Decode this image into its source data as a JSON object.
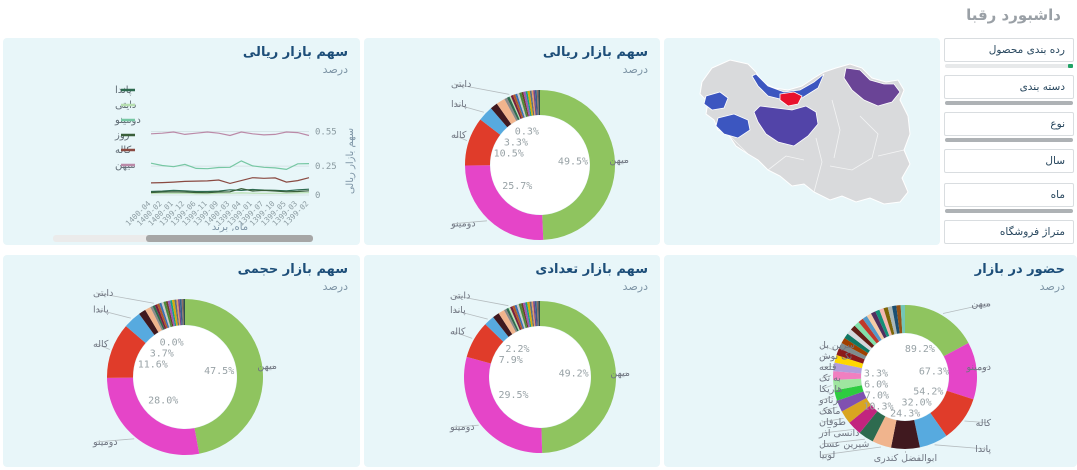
{
  "page": {
    "title": "داشبورد رقبا"
  },
  "filters": {
    "tick_color": "#21a366",
    "items": [
      {
        "label": "رده بندی محصول",
        "scrollbar": true,
        "tick": true
      },
      {
        "label": "دسته بندی",
        "scrollbar": true,
        "tick": false
      },
      {
        "label": "نوع",
        "scrollbar": true,
        "tick": false
      },
      {
        "label": "سال",
        "scrollbar": false,
        "tick": false
      },
      {
        "label": "ماه",
        "scrollbar": true,
        "tick": false
      },
      {
        "label": "متراژ فروشگاه",
        "scrollbar": false,
        "tick": false
      }
    ]
  },
  "map": {
    "regions": [
      {
        "id": "iran-base",
        "color": "#d9dadc"
      },
      {
        "id": "mazandaran",
        "color": "#3c56c0"
      },
      {
        "id": "kurdistan",
        "color": "#3c56c0"
      },
      {
        "id": "hamadan-cluster",
        "color": "#3c56c0"
      },
      {
        "id": "central",
        "color": "#5244a8"
      },
      {
        "id": "khorasan-razavi",
        "color": "#6a4496"
      },
      {
        "id": "tehran",
        "color": "#e8112d"
      }
    ]
  },
  "chart_data": [
    {
      "type": "line",
      "title": "سهم بازار ریالی",
      "subtitle": "درصد",
      "xlabel": "ماه, برند",
      "ylabel": "سهم بازار ریالی",
      "x": [
        "1400-04",
        "1400-02",
        "1400-01",
        "1399-12",
        "1399-06",
        "1399-11",
        "1399-09",
        "1400-03",
        "1399-04",
        "1399-01",
        "1399-07",
        "1399-10",
        "1399-05",
        "1399-03",
        "1399-02"
      ],
      "yticks": [
        "0.55",
        "0.25",
        "0"
      ],
      "ytick_values": [
        0.55,
        0.25,
        0
      ],
      "ymax": 0.58,
      "series": [
        {
          "name": "پاندا",
          "color": "#2d6a4f",
          "values": [
            0.03,
            0.034,
            0.04,
            0.036,
            0.03,
            0.03,
            0.034,
            0.045,
            0.04,
            0.048,
            0.042,
            0.04,
            0.036,
            0.044,
            0.05
          ]
        },
        {
          "name": "دایتی",
          "color": "#b7dfb0",
          "values": [
            0.015,
            0.016,
            0.015,
            0.016,
            0.012,
            0.012,
            0.015,
            0.016,
            0.018,
            0.016,
            0.015,
            0.016,
            0.015,
            0.018,
            0.02
          ]
        },
        {
          "name": "دومینو",
          "color": "#76c7a3",
          "values": [
            0.275,
            0.255,
            0.245,
            0.265,
            0.23,
            0.228,
            0.238,
            0.24,
            0.295,
            0.252,
            0.24,
            0.235,
            0.222,
            0.27,
            0.272
          ]
        },
        {
          "name": "روز",
          "color": "#3a5f3a",
          "values": [
            0.022,
            0.026,
            0.028,
            0.026,
            0.022,
            0.02,
            0.026,
            0.028,
            0.055,
            0.035,
            0.04,
            0.035,
            0.028,
            0.03,
            0.036
          ]
        },
        {
          "name": "کاله",
          "color": "#8a4a42",
          "values": [
            0.105,
            0.107,
            0.112,
            0.118,
            0.12,
            0.122,
            0.13,
            0.1,
            0.125,
            0.15,
            0.145,
            0.148,
            0.112,
            0.125,
            0.15
          ]
        },
        {
          "name": "میهن",
          "color": "#bb8aa8",
          "values": [
            0.53,
            0.535,
            0.545,
            0.525,
            0.535,
            0.545,
            0.535,
            0.515,
            0.545,
            0.53,
            0.52,
            0.525,
            0.545,
            0.54,
            0.515
          ]
        }
      ]
    },
    {
      "type": "pie",
      "title": "سهم بازار ریالی",
      "subtitle": "درصد",
      "slices": [
        {
          "name": "میهن",
          "value": 49.5,
          "color": "#8fc45f",
          "pct": "49.5%"
        },
        {
          "name": "دومینو",
          "value": 25.7,
          "color": "#e545c8",
          "pct": "25.7%"
        },
        {
          "name": "کاله",
          "value": 10.5,
          "color": "#e03c2a",
          "pct": "10.5%"
        },
        {
          "name": "پاندا",
          "value": 3.3,
          "color": "#57aadf",
          "pct": "3.3%"
        },
        {
          "value": 1.6,
          "color": "#40191f"
        },
        {
          "value": 1.9,
          "color": "#f0b48d"
        },
        {
          "value": 0.6,
          "color": "#8a8a8a"
        },
        {
          "value": 0.6,
          "color": "#2e6b4f"
        },
        {
          "name": "دایتی",
          "value": 0.3,
          "color": "#b7dfb0",
          "pct": "0.3%"
        },
        {
          "value": 0.5,
          "color": "#7a1f3d"
        },
        {
          "value": 0.5,
          "color": "#b05c2a"
        },
        {
          "value": 0.45,
          "color": "#3b6fb3"
        },
        {
          "value": 0.45,
          "color": "#c9c9c9"
        },
        {
          "value": 0.5,
          "color": "#4b8b3b"
        },
        {
          "value": 0.4,
          "color": "#6b4226"
        },
        {
          "value": 0.5,
          "color": "#9b59b6"
        },
        {
          "value": 0.4,
          "color": "#16a085"
        },
        {
          "value": 0.5,
          "color": "#d4ac0d"
        },
        {
          "value": 0.4,
          "color": "#5d6d7e"
        },
        {
          "value": 0.35,
          "color": "#e59866"
        },
        {
          "value": 0.35,
          "color": "#76448a"
        },
        {
          "value": 0.4,
          "color": "#356089"
        },
        {
          "value": 0.35,
          "color": "#8d6e63"
        },
        {
          "value": 0.35,
          "color": "#2f4f4f"
        }
      ]
    },
    {
      "type": "pie",
      "title": "سهم بازار حجمی",
      "subtitle": "درصد",
      "slices": [
        {
          "name": "میهن",
          "value": 47.5,
          "color": "#8fc45f",
          "pct": "47.5%"
        },
        {
          "name": "دومینو",
          "value": 28.0,
          "color": "#e545c8",
          "pct": "28.0%"
        },
        {
          "name": "کاله",
          "value": 11.6,
          "color": "#e03c2a",
          "pct": "11.6%"
        },
        {
          "name": "پاندا",
          "value": 3.7,
          "color": "#57aadf",
          "pct": "3.7%"
        },
        {
          "value": 1.5,
          "color": "#40191f"
        },
        {
          "value": 1.2,
          "color": "#f0b48d"
        },
        {
          "value": 0.5,
          "color": "#8a8a8a"
        },
        {
          "value": 0.5,
          "color": "#2e6b4f"
        },
        {
          "name": "دایتی",
          "value": 0.0,
          "color": "#b7dfb0",
          "pct": "0.0%"
        },
        {
          "value": 0.5,
          "color": "#7a1f3d"
        },
        {
          "value": 0.5,
          "color": "#b05c2a"
        },
        {
          "value": 0.45,
          "color": "#3b6fb3"
        },
        {
          "value": 0.45,
          "color": "#c9c9c9"
        },
        {
          "value": 0.5,
          "color": "#4b8b3b"
        },
        {
          "value": 0.4,
          "color": "#6b4226"
        },
        {
          "value": 0.5,
          "color": "#9b59b6"
        },
        {
          "value": 0.4,
          "color": "#16a085"
        },
        {
          "value": 0.5,
          "color": "#d4ac0d"
        },
        {
          "value": 0.4,
          "color": "#5d6d7e"
        },
        {
          "value": 0.35,
          "color": "#e59866"
        },
        {
          "value": 0.35,
          "color": "#76448a"
        },
        {
          "value": 0.4,
          "color": "#356089"
        },
        {
          "value": 0.35,
          "color": "#8d6e63"
        },
        {
          "value": 0.35,
          "color": "#2f4f4f"
        }
      ]
    },
    {
      "type": "pie",
      "title": "سهم بازار تعدادی",
      "subtitle": "درصد",
      "slices": [
        {
          "name": "میهن",
          "value": 49.2,
          "color": "#8fc45f",
          "pct": "49.2%"
        },
        {
          "name": "دومینو",
          "value": 29.5,
          "color": "#e545c8",
          "pct": "29.5%"
        },
        {
          "name": "کاله",
          "value": 7.9,
          "color": "#e03c2a",
          "pct": "7.9%"
        },
        {
          "name": "پاندا",
          "value": 2.2,
          "color": "#57aadf",
          "pct": "2.2%"
        },
        {
          "value": 1.4,
          "color": "#40191f"
        },
        {
          "value": 1.3,
          "color": "#f0b48d"
        },
        {
          "value": 0.5,
          "color": "#8a8a8a"
        },
        {
          "value": 0.5,
          "color": "#2e6b4f"
        },
        {
          "name": "دایتی",
          "value": 0.4,
          "color": "#b7dfb0"
        },
        {
          "value": 0.5,
          "color": "#7a1f3d"
        },
        {
          "value": 0.5,
          "color": "#b05c2a"
        },
        {
          "value": 0.45,
          "color": "#3b6fb3"
        },
        {
          "value": 0.45,
          "color": "#c9c9c9"
        },
        {
          "value": 0.5,
          "color": "#4b8b3b"
        },
        {
          "value": 0.4,
          "color": "#6b4226"
        },
        {
          "value": 0.5,
          "color": "#9b59b6"
        },
        {
          "value": 0.4,
          "color": "#16a085"
        },
        {
          "value": 0.5,
          "color": "#d4ac0d"
        },
        {
          "value": 0.4,
          "color": "#5d6d7e"
        },
        {
          "value": 0.35,
          "color": "#e59866"
        },
        {
          "value": 0.35,
          "color": "#76448a"
        },
        {
          "value": 0.4,
          "color": "#356089"
        },
        {
          "value": 0.35,
          "color": "#8d6e63"
        },
        {
          "value": 0.35,
          "color": "#2f4f4f"
        }
      ]
    },
    {
      "type": "pie",
      "title": "حضور در بازار",
      "subtitle": "درصد",
      "slices": [
        {
          "name": "میهن",
          "value": 16,
          "color": "#8fc45f",
          "pct": "89.2%"
        },
        {
          "name": "دومینو",
          "value": 12,
          "color": "#e545c8",
          "pct": "67.3%"
        },
        {
          "name": "کاله",
          "value": 9.5,
          "color": "#e03c2a",
          "pct": "54.2%"
        },
        {
          "name": "پاندا",
          "value": 6,
          "color": "#57aadf",
          "pct": "32.0%"
        },
        {
          "name": "ابوالفضل کندری",
          "value": 6,
          "color": "#40191f",
          "pct": "24.3%"
        },
        {
          "name": "لوبیا",
          "value": 4,
          "color": "#f0b48d"
        },
        {
          "name": "شیرین عسل",
          "value": 3.2,
          "color": "#2e6b4f"
        },
        {
          "name": "دانسی آذر",
          "value": 3,
          "color": "#c2247e"
        },
        {
          "name": "طوفان",
          "value": 2.8,
          "color": "#d9a520"
        },
        {
          "name": "ماهک",
          "value": 2.4,
          "color": "#8050b0",
          "pct": "10.3%"
        },
        {
          "name": "ترنادو",
          "value": 2.2,
          "color": "#2ecc40",
          "pct": "7.0%"
        },
        {
          "name": "هاریکا",
          "value": 2.2,
          "color": "#9fe6a0",
          "pct": "6.0%"
        },
        {
          "name": "به تک",
          "value": 1.8,
          "color": "#f07fc0",
          "pct": "3.3%"
        },
        {
          "name": "قلعه",
          "value": 1.8,
          "color": "#b39ddb"
        },
        {
          "name": "تک نوش",
          "value": 1.6,
          "color": "#ffd700"
        },
        {
          "name": "سرین بل",
          "value": 1.5,
          "color": "#8b1a1a"
        },
        {
          "value": 1.2,
          "color": "#7f8c8d"
        },
        {
          "value": 1.2,
          "color": "#a04000"
        },
        {
          "value": 1.1,
          "color": "#117864"
        },
        {
          "value": 1.1,
          "color": "#d5d8dc"
        },
        {
          "value": 1.1,
          "color": "#641e16"
        },
        {
          "value": 1.1,
          "color": "#82e0aa"
        },
        {
          "value": 1.1,
          "color": "#c0392b"
        },
        {
          "value": 1.0,
          "color": "#5499c7"
        },
        {
          "value": 1.0,
          "color": "#f5cba7"
        },
        {
          "value": 1.0,
          "color": "#512e5f"
        },
        {
          "value": 0.9,
          "color": "#148f77"
        },
        {
          "value": 0.9,
          "color": "#f5b7b1"
        },
        {
          "value": 0.9,
          "color": "#7d6608"
        },
        {
          "value": 0.9,
          "color": "#aab7b8"
        },
        {
          "value": 0.9,
          "color": "#1b4f72"
        },
        {
          "value": 0.9,
          "color": "#935116"
        },
        {
          "value": 0.9,
          "color": "#73c6b6"
        }
      ]
    }
  ]
}
